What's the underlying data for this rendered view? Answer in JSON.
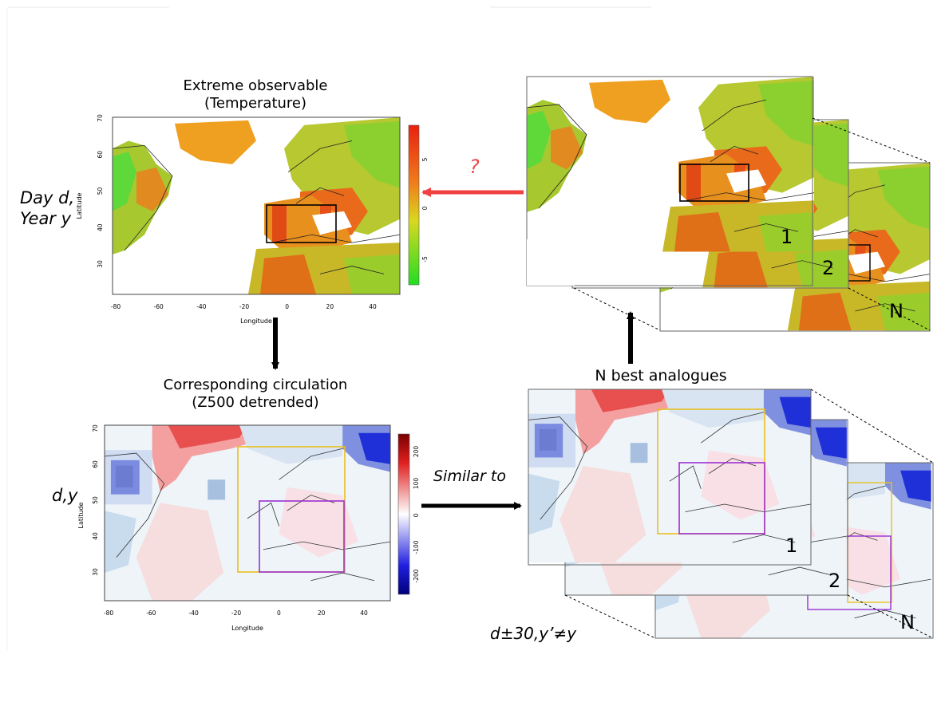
{
  "temperature_panel": {
    "title_line1": "Extreme observable",
    "title_line2": "(Temperature)",
    "side_label_line1": "Day d,",
    "side_label_line2": "Year y",
    "x_axis_label": "Longitude",
    "y_axis_label": "Latitude",
    "x_ticks": [
      "-80",
      "-60",
      "-40",
      "-20",
      "0",
      "20",
      "40"
    ],
    "y_ticks": [
      "30",
      "40",
      "50",
      "60",
      "70"
    ],
    "colorbar_ticks": [
      "5",
      "0",
      "-5"
    ]
  },
  "circulation_panel": {
    "title_line1": "Corresponding circulation",
    "title_line2": "(Z500 detrended)",
    "side_label": "d,y",
    "x_axis_label": "Longitude",
    "y_axis_label": "Latitude",
    "x_ticks": [
      "-80",
      "-60",
      "-40",
      "-20",
      "0",
      "20",
      "40"
    ],
    "y_ticks": [
      "30",
      "40",
      "50",
      "60",
      "70"
    ],
    "colorbar_ticks": [
      "200",
      "100",
      "0",
      "-100",
      "-200"
    ]
  },
  "question_mark": "?",
  "similar_to_label": "Similar to",
  "analogues_label": "N best analogues",
  "date_constraint_label": "d±30,y’≠y",
  "stack_labels": [
    "1",
    "2",
    "N"
  ],
  "colors": {
    "arrow_red": "#f04040",
    "question_red": "#ee4444",
    "yellow_box": "#e8c020",
    "purple_box": "#9b30d0"
  }
}
